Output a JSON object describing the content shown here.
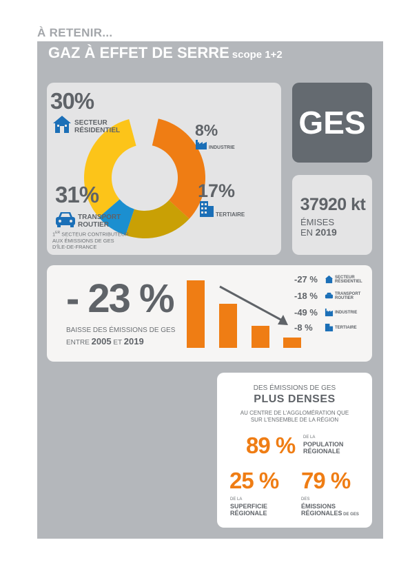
{
  "header": {
    "kicker": "À RETENIR...",
    "title": "GAZ À EFFET DE SERRE",
    "scope": "scope 1+2"
  },
  "donut": {
    "segments": [
      {
        "name": "residentiel",
        "value": 30,
        "color": "#fcc419"
      },
      {
        "name": "industrie",
        "value": 8,
        "color": "#1b8fd0"
      },
      {
        "name": "tertiaire",
        "value": 17,
        "color": "#c9a005"
      },
      {
        "name": "transport",
        "value": 31,
        "color": "#ef7d14"
      }
    ],
    "residentiel": {
      "pct": "30%",
      "line1": "SECTEUR",
      "line2": "RÉSIDENTIEL"
    },
    "industrie": {
      "pct": "8%",
      "label": "INDUSTRIE"
    },
    "tertiaire": {
      "pct": "17%",
      "label": "TERTIAIRE"
    },
    "transport": {
      "pct": "31%",
      "line1": "TRANSPORT",
      "line2": "ROUTIER"
    },
    "note": {
      "sup": "ER",
      "line1a": "1",
      "line1b": " SECTEUR CONTRIBUTEUR",
      "line2": "AUX ÉMISSIONS DE GES",
      "line3": "D'ÎLE-DE-FRANCE"
    }
  },
  "ges": {
    "label": "GES"
  },
  "emissions": {
    "value": "37920 kt",
    "line1": "ÉMISES",
    "line2a": "EN ",
    "year": "2019"
  },
  "trend": {
    "pct": "- 23 %",
    "line1": "BAISSE DES ÉMISSIONS DE GES",
    "line2a": "ENTRE ",
    "year1": "2005",
    "line2b": " ET ",
    "year2": "2019",
    "bars": [
      100,
      65,
      33,
      15
    ],
    "legend": [
      {
        "value": "-27 %",
        "line1": "SECTEUR",
        "line2": "RÉSIDENTIEL",
        "icon": "house-icon"
      },
      {
        "value": "-18 %",
        "line1": "TRANSPORT",
        "line2": "ROUTIER",
        "icon": "car-icon"
      },
      {
        "value": "-49 %",
        "line1": "INDUSTRIE",
        "line2": "",
        "icon": "factory-icon"
      },
      {
        "value": "-8 %",
        "line1": "TERTIAIRE",
        "line2": "",
        "icon": "building-icon"
      }
    ]
  },
  "dense": {
    "pre": "DES ÉMISSIONS DE GES",
    "title": "PLUS DENSES",
    "sub1": "AU CENTRE DE L'AGGLOMÉRATION QUE",
    "sub2": "SUR L'ENSEMBLE DE LA RÉGION",
    "population": {
      "pct": "89 %",
      "small": "DE LA",
      "line1": "POPULATION",
      "line2": "RÉGIONALE"
    },
    "superficie": {
      "pct": "25 %",
      "small": "DE LA",
      "line1": "SUPERFICIE",
      "line2": "RÉGIONALE"
    },
    "emissions": {
      "pct": "79 %",
      "small": "DES",
      "line1": "ÉMISSIONS",
      "line2": "RÉGIONALES",
      "suffix": " DE GES"
    }
  },
  "colors": {
    "orange": "#ef7d14",
    "blue": "#1b6fb7",
    "grey": "#5f6368"
  }
}
